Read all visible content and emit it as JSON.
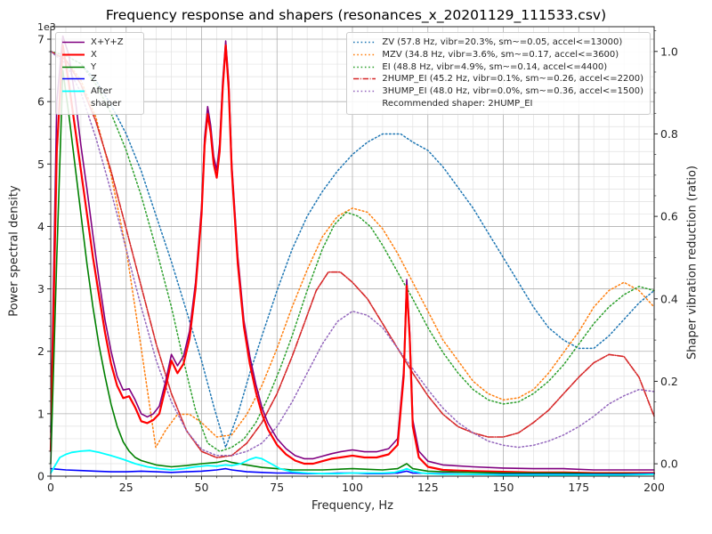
{
  "chart_data": {
    "type": "line",
    "title": "Frequency response and shapers (resonances_x_20201129_111533.csv)",
    "xlabel": "Frequency, Hz",
    "ylabel_left": "Power spectral density",
    "ylabel_right": "Shaper vibration reduction (ratio)",
    "y_left_offset_text": "1e3",
    "xlim": [
      0,
      200
    ],
    "ylim_left_1e3": [
      0,
      7.2
    ],
    "ylim_right": [
      -0.03,
      1.06
    ],
    "x_ticks": [
      0,
      25,
      50,
      75,
      100,
      125,
      150,
      175,
      200
    ],
    "y_left_ticks": [
      0,
      1,
      2,
      3,
      4,
      5,
      6,
      7
    ],
    "y_right_ticks": [
      0.0,
      0.2,
      0.4,
      0.6,
      0.8,
      1.0
    ],
    "grid": {
      "major": true,
      "minor": true
    },
    "legend_note": "Recommended shaper: 2HUMP_EI",
    "recommended_shaper": "2HUMP_EI",
    "psd_series": [
      {
        "name": "X+Y+Z",
        "color": "#800080",
        "style": "solid",
        "width": 1.6,
        "x": [
          0,
          2,
          4,
          6,
          8,
          10,
          12,
          14,
          16,
          18,
          20,
          22,
          24,
          26,
          28,
          30,
          32,
          34,
          36,
          38,
          40,
          42,
          44,
          46,
          48,
          50,
          51,
          52,
          53,
          54,
          55,
          56,
          57,
          58,
          59,
          60,
          62,
          64,
          66,
          68,
          70,
          72,
          75,
          78,
          81,
          84,
          87,
          90,
          93,
          96,
          100,
          104,
          108,
          112,
          115,
          117,
          118,
          119,
          120,
          122,
          125,
          130,
          140,
          150,
          160,
          170,
          180,
          190,
          200
        ],
        "y": [
          0.7,
          6.0,
          7.05,
          6.75,
          6.1,
          5.3,
          4.6,
          3.85,
          3.15,
          2.5,
          2.0,
          1.6,
          1.38,
          1.4,
          1.22,
          1.0,
          0.95,
          1.0,
          1.12,
          1.5,
          1.95,
          1.77,
          1.92,
          2.32,
          3.1,
          4.32,
          5.42,
          5.92,
          5.62,
          5.12,
          4.9,
          5.33,
          6.32,
          6.97,
          6.32,
          5.0,
          3.52,
          2.5,
          1.92,
          1.47,
          1.1,
          0.85,
          0.6,
          0.44,
          0.33,
          0.28,
          0.28,
          0.32,
          0.36,
          0.39,
          0.42,
          0.39,
          0.39,
          0.44,
          0.6,
          1.7,
          3.15,
          2.3,
          0.9,
          0.4,
          0.24,
          0.18,
          0.15,
          0.13,
          0.12,
          0.12,
          0.1,
          0.1,
          0.1
        ]
      },
      {
        "name": "X",
        "color": "#ff0000",
        "style": "solid",
        "width": 2.2,
        "x": [
          0,
          2,
          4,
          6,
          8,
          10,
          12,
          14,
          16,
          18,
          20,
          22,
          24,
          26,
          28,
          30,
          32,
          34,
          36,
          38,
          40,
          42,
          44,
          46,
          48,
          50,
          51,
          52,
          53,
          54,
          55,
          56,
          57,
          58,
          59,
          60,
          62,
          64,
          66,
          68,
          70,
          72,
          75,
          78,
          81,
          84,
          87,
          90,
          93,
          96,
          100,
          104,
          108,
          112,
          115,
          117,
          118,
          119,
          120,
          122,
          125,
          130,
          140,
          150,
          160,
          170,
          180,
          190,
          200
        ],
        "y": [
          0.4,
          5.2,
          6.9,
          6.3,
          5.6,
          4.9,
          4.2,
          3.5,
          2.9,
          2.3,
          1.8,
          1.45,
          1.25,
          1.28,
          1.1,
          0.88,
          0.85,
          0.9,
          1.0,
          1.4,
          1.85,
          1.65,
          1.8,
          2.2,
          3.0,
          4.2,
          5.3,
          5.8,
          5.5,
          5.0,
          4.78,
          5.2,
          6.2,
          6.9,
          6.2,
          4.9,
          3.4,
          2.4,
          1.8,
          1.35,
          1.0,
          0.75,
          0.5,
          0.35,
          0.25,
          0.2,
          0.2,
          0.24,
          0.28,
          0.3,
          0.33,
          0.3,
          0.3,
          0.35,
          0.5,
          1.6,
          3.05,
          2.2,
          0.8,
          0.3,
          0.15,
          0.1,
          0.08,
          0.07,
          0.06,
          0.06,
          0.05,
          0.05,
          0.05
        ]
      },
      {
        "name": "Y",
        "color": "#008000",
        "style": "solid",
        "width": 1.6,
        "x": [
          0,
          2,
          4,
          6,
          8,
          10,
          12,
          14,
          16,
          18,
          20,
          22,
          24,
          26,
          28,
          30,
          35,
          40,
          45,
          50,
          55,
          58,
          60,
          65,
          70,
          75,
          80,
          85,
          90,
          95,
          100,
          105,
          110,
          115,
          118,
          120,
          125,
          130,
          140,
          150,
          160,
          170,
          180,
          190,
          200
        ],
        "y": [
          0.2,
          3.5,
          6.5,
          5.8,
          5.0,
          4.2,
          3.4,
          2.7,
          2.1,
          1.6,
          1.15,
          0.8,
          0.55,
          0.4,
          0.3,
          0.25,
          0.18,
          0.15,
          0.17,
          0.2,
          0.22,
          0.25,
          0.22,
          0.18,
          0.14,
          0.12,
          0.1,
          0.1,
          0.1,
          0.11,
          0.12,
          0.11,
          0.1,
          0.12,
          0.2,
          0.12,
          0.08,
          0.07,
          0.06,
          0.05,
          0.05,
          0.05,
          0.04,
          0.04,
          0.04
        ]
      },
      {
        "name": "Z",
        "color": "#0000ff",
        "style": "solid",
        "width": 1.6,
        "x": [
          0,
          5,
          10,
          15,
          20,
          25,
          30,
          35,
          40,
          45,
          50,
          55,
          58,
          60,
          65,
          70,
          75,
          80,
          85,
          90,
          95,
          100,
          105,
          110,
          115,
          118,
          120,
          130,
          140,
          150,
          160,
          170,
          180,
          190,
          200
        ],
        "y": [
          0.12,
          0.1,
          0.09,
          0.08,
          0.07,
          0.07,
          0.08,
          0.07,
          0.06,
          0.07,
          0.08,
          0.1,
          0.12,
          0.1,
          0.07,
          0.06,
          0.05,
          0.05,
          0.04,
          0.04,
          0.05,
          0.05,
          0.04,
          0.04,
          0.05,
          0.08,
          0.05,
          0.04,
          0.03,
          0.03,
          0.03,
          0.03,
          0.03,
          0.03,
          0.04
        ]
      },
      {
        "name": "After shaper",
        "color": "#00ffff",
        "style": "solid",
        "width": 1.8,
        "x": [
          0,
          3,
          5,
          7,
          10,
          13,
          16,
          20,
          24,
          28,
          32,
          36,
          40,
          44,
          48,
          52,
          55,
          58,
          60,
          63,
          66,
          68,
          70,
          73,
          76,
          80,
          85,
          90,
          95,
          100,
          105,
          110,
          114,
          117,
          118,
          120,
          123,
          126,
          130,
          140,
          150,
          160,
          170,
          180,
          190,
          200
        ],
        "y": [
          0.05,
          0.3,
          0.35,
          0.38,
          0.4,
          0.41,
          0.38,
          0.33,
          0.27,
          0.2,
          0.15,
          0.12,
          0.1,
          0.12,
          0.15,
          0.17,
          0.16,
          0.18,
          0.17,
          0.2,
          0.27,
          0.3,
          0.28,
          0.2,
          0.12,
          0.07,
          0.05,
          0.04,
          0.04,
          0.05,
          0.05,
          0.05,
          0.06,
          0.1,
          0.12,
          0.08,
          0.05,
          0.04,
          0.03,
          0.03,
          0.02,
          0.02,
          0.02,
          0.02,
          0.02,
          0.03
        ]
      }
    ],
    "shaper_series": [
      {
        "name": "ZV",
        "label": "ZV (57.8 Hz, vibr=20.3%, sm~=0.05, accel<=13000)",
        "freq_hz": 57.8,
        "vibr_pct": 20.3,
        "sm": 0.05,
        "max_accel": 13000,
        "color": "#1f77b4",
        "style": "dotted",
        "width": 1.5,
        "x": [
          0,
          5,
          10,
          15,
          20,
          25,
          30,
          35,
          40,
          45,
          50,
          54,
          58,
          62,
          66,
          70,
          75,
          80,
          85,
          90,
          95,
          100,
          105,
          110,
          113,
          116,
          120,
          125,
          130,
          135,
          140,
          145,
          150,
          155,
          160,
          165,
          170,
          175,
          180,
          185,
          190,
          195,
          200
        ],
        "y": [
          1.0,
          0.99,
          0.97,
          0.93,
          0.87,
          0.8,
          0.71,
          0.6,
          0.49,
          0.37,
          0.25,
          0.14,
          0.04,
          0.12,
          0.22,
          0.31,
          0.42,
          0.52,
          0.6,
          0.66,
          0.71,
          0.75,
          0.78,
          0.8,
          0.8,
          0.8,
          0.78,
          0.76,
          0.72,
          0.67,
          0.62,
          0.56,
          0.5,
          0.44,
          0.38,
          0.33,
          0.3,
          0.28,
          0.28,
          0.31,
          0.35,
          0.39,
          0.42
        ]
      },
      {
        "name": "MZV",
        "label": "MZV (34.8 Hz, vibr=3.6%, sm~=0.17, accel<=3600)",
        "freq_hz": 34.8,
        "vibr_pct": 3.6,
        "sm": 0.17,
        "max_accel": 3600,
        "color": "#ff7f0e",
        "style": "dotted",
        "width": 1.5,
        "x": [
          0,
          5,
          10,
          15,
          20,
          25,
          30,
          34.8,
          38,
          42,
          46,
          50,
          55,
          60,
          65,
          70,
          75,
          80,
          85,
          90,
          95,
          100,
          105,
          110,
          115,
          120,
          125,
          130,
          135,
          140,
          145,
          150,
          155,
          160,
          165,
          170,
          175,
          180,
          185,
          190,
          195,
          200
        ],
        "y": [
          1.0,
          0.98,
          0.93,
          0.84,
          0.7,
          0.52,
          0.28,
          0.04,
          0.08,
          0.12,
          0.12,
          0.1,
          0.065,
          0.07,
          0.12,
          0.19,
          0.28,
          0.38,
          0.47,
          0.55,
          0.6,
          0.62,
          0.61,
          0.57,
          0.51,
          0.44,
          0.37,
          0.3,
          0.25,
          0.2,
          0.17,
          0.155,
          0.16,
          0.18,
          0.22,
          0.27,
          0.32,
          0.38,
          0.42,
          0.44,
          0.42,
          0.38
        ]
      },
      {
        "name": "EI",
        "label": "EI (48.8 Hz, vibr=4.9%, sm~=0.14, accel<=4400)",
        "freq_hz": 48.8,
        "vibr_pct": 4.9,
        "sm": 0.14,
        "max_accel": 4400,
        "color": "#2ca02c",
        "style": "dotted",
        "width": 1.5,
        "x": [
          0,
          5,
          10,
          15,
          20,
          25,
          30,
          35,
          40,
          44,
          48,
          52,
          56,
          60,
          64,
          68,
          72,
          76,
          80,
          85,
          90,
          94,
          98,
          102,
          106,
          110,
          115,
          120,
          125,
          130,
          135,
          140,
          145,
          150,
          155,
          160,
          165,
          170,
          175,
          180,
          185,
          190,
          195,
          200
        ],
        "y": [
          1.0,
          0.99,
          0.97,
          0.92,
          0.85,
          0.76,
          0.65,
          0.52,
          0.38,
          0.25,
          0.13,
          0.05,
          0.03,
          0.04,
          0.06,
          0.1,
          0.16,
          0.23,
          0.31,
          0.42,
          0.52,
          0.58,
          0.61,
          0.6,
          0.575,
          0.53,
          0.465,
          0.4,
          0.33,
          0.27,
          0.22,
          0.18,
          0.155,
          0.145,
          0.15,
          0.17,
          0.2,
          0.24,
          0.29,
          0.34,
          0.38,
          0.41,
          0.43,
          0.42
        ]
      },
      {
        "name": "2HUMP_EI",
        "label": "2HUMP_EI (45.2 Hz, vibr=0.1%, sm~=0.26, accel<=2200)",
        "freq_hz": 45.2,
        "vibr_pct": 0.1,
        "sm": 0.26,
        "max_accel": 2200,
        "color": "#d62728",
        "style": "dashdot",
        "width": 1.6,
        "x": [
          0,
          5,
          10,
          15,
          20,
          25,
          30,
          35,
          40,
          45,
          50,
          55,
          60,
          65,
          70,
          75,
          80,
          84,
          88,
          92,
          96,
          100,
          105,
          110,
          115,
          120,
          125,
          130,
          135,
          140,
          145,
          150,
          155,
          160,
          165,
          170,
          175,
          180,
          185,
          190,
          195,
          200
        ],
        "y": [
          1.0,
          0.98,
          0.92,
          0.83,
          0.71,
          0.57,
          0.43,
          0.29,
          0.17,
          0.08,
          0.03,
          0.015,
          0.02,
          0.05,
          0.1,
          0.17,
          0.26,
          0.34,
          0.42,
          0.465,
          0.465,
          0.44,
          0.4,
          0.34,
          0.28,
          0.22,
          0.165,
          0.12,
          0.09,
          0.075,
          0.065,
          0.065,
          0.075,
          0.1,
          0.13,
          0.17,
          0.21,
          0.245,
          0.265,
          0.26,
          0.21,
          0.115
        ]
      },
      {
        "name": "3HUMP_EI",
        "label": "3HUMP_EI (48.0 Hz, vibr=0.0%, sm~=0.36, accel<=1500)",
        "freq_hz": 48.0,
        "vibr_pct": 0.0,
        "sm": 0.36,
        "max_accel": 1500,
        "color": "#9467bd",
        "style": "dotted",
        "width": 1.5,
        "x": [
          0,
          5,
          10,
          15,
          20,
          25,
          30,
          35,
          40,
          45,
          50,
          55,
          60,
          65,
          70,
          75,
          80,
          85,
          90,
          95,
          100,
          105,
          110,
          115,
          120,
          125,
          130,
          135,
          140,
          145,
          150,
          155,
          160,
          165,
          170,
          175,
          180,
          185,
          190,
          195,
          200
        ],
        "y": [
          1.0,
          0.97,
          0.9,
          0.79,
          0.66,
          0.52,
          0.38,
          0.25,
          0.15,
          0.08,
          0.035,
          0.02,
          0.02,
          0.03,
          0.05,
          0.09,
          0.15,
          0.22,
          0.29,
          0.345,
          0.37,
          0.36,
          0.33,
          0.28,
          0.23,
          0.18,
          0.135,
          0.1,
          0.075,
          0.055,
          0.045,
          0.04,
          0.045,
          0.055,
          0.07,
          0.09,
          0.115,
          0.145,
          0.165,
          0.18,
          0.175
        ]
      }
    ]
  }
}
